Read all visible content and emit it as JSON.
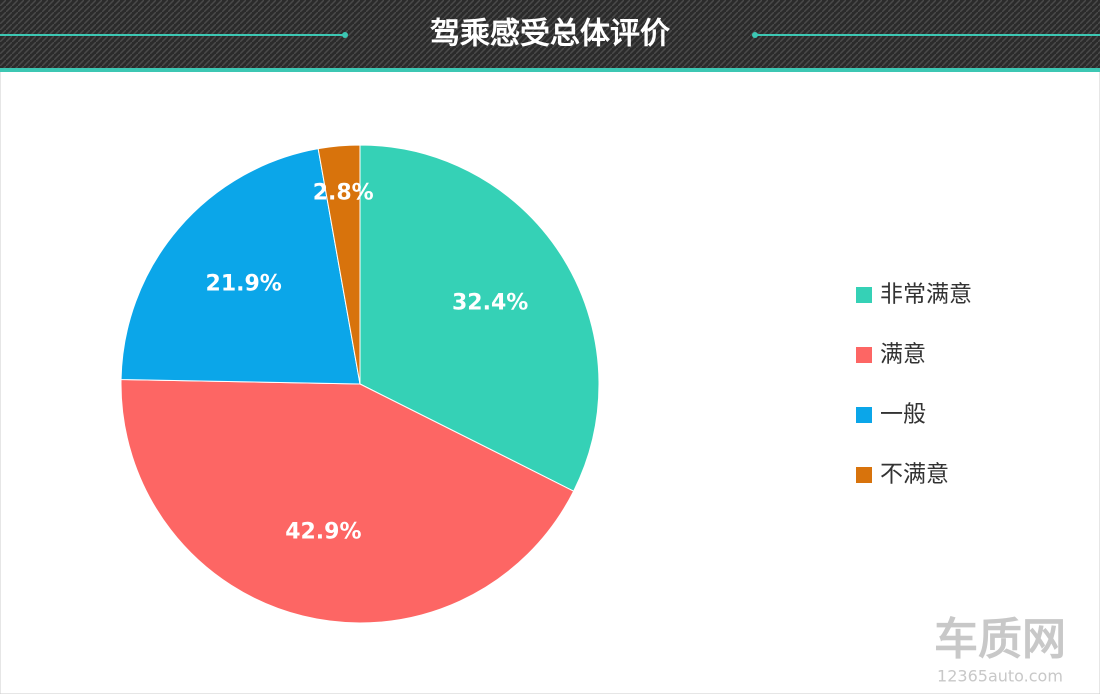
{
  "chart_data": {
    "type": "pie",
    "title": "驾乘感受总体评价",
    "categories": [
      "非常满意",
      "满意",
      "一般",
      "不满意"
    ],
    "values": [
      32.4,
      42.9,
      21.9,
      2.8
    ],
    "value_labels": [
      "32.4%",
      "42.9%",
      "21.9%",
      "2.8%"
    ],
    "colors": [
      "#35d1b6",
      "#fd6664",
      "#0ba6e9",
      "#d8730c"
    ],
    "legend": "right",
    "watermark": [
      "车质网",
      "12365auto.com"
    ]
  }
}
